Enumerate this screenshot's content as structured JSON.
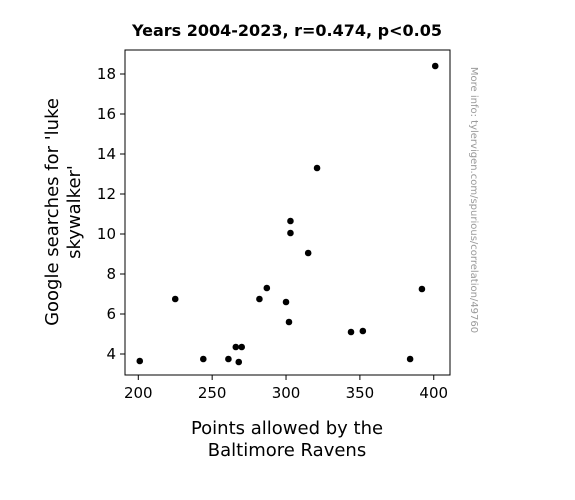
{
  "chart_data": {
    "type": "scatter",
    "title": "Years 2004-2023, r=0.474, p<0.05",
    "xlabel_lines": [
      "Points allowed by the",
      "Baltimore Ravens"
    ],
    "ylabel_lines": [
      "Google searches for 'luke",
      "skywalker'"
    ],
    "watermark": "More info: tylervigen.com/spurious/correlation/49760",
    "xlim": [
      191,
      411
    ],
    "ylim": [
      2.95,
      19.2
    ],
    "xticks": [
      200,
      250,
      300,
      350,
      400
    ],
    "yticks": [
      4,
      6,
      8,
      10,
      12,
      14,
      16,
      18
    ],
    "grid": false,
    "marker_color": "#000000",
    "points": [
      {
        "x": 201,
        "y": 3.65
      },
      {
        "x": 225,
        "y": 6.75
      },
      {
        "x": 244,
        "y": 3.75
      },
      {
        "x": 261,
        "y": 3.75
      },
      {
        "x": 266,
        "y": 4.35
      },
      {
        "x": 268,
        "y": 3.6
      },
      {
        "x": 270,
        "y": 4.35
      },
      {
        "x": 282,
        "y": 6.75
      },
      {
        "x": 287,
        "y": 7.3
      },
      {
        "x": 300,
        "y": 6.6
      },
      {
        "x": 302,
        "y": 5.6
      },
      {
        "x": 303,
        "y": 10.65
      },
      {
        "x": 303,
        "y": 10.05
      },
      {
        "x": 315,
        "y": 9.05
      },
      {
        "x": 321,
        "y": 13.3
      },
      {
        "x": 344,
        "y": 5.1
      },
      {
        "x": 352,
        "y": 5.15
      },
      {
        "x": 384,
        "y": 3.75
      },
      {
        "x": 392,
        "y": 7.25
      },
      {
        "x": 401,
        "y": 18.4
      }
    ]
  }
}
